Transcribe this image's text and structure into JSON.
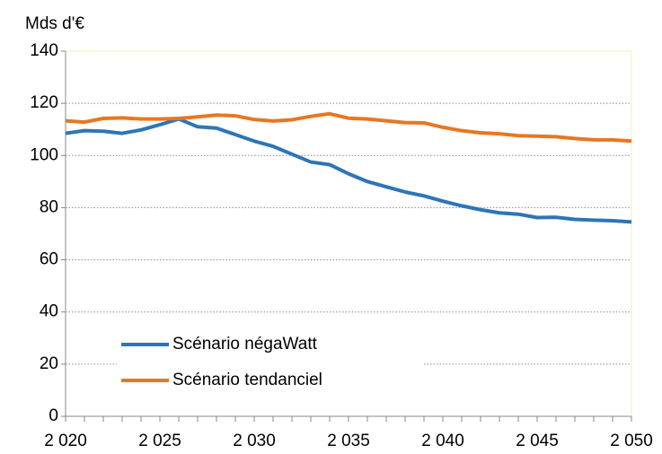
{
  "chart_data": {
    "type": "line",
    "y_label": "Mds d'€",
    "x": [
      2020,
      2021,
      2022,
      2023,
      2024,
      2025,
      2026,
      2027,
      2028,
      2029,
      2030,
      2031,
      2032,
      2033,
      2034,
      2035,
      2036,
      2037,
      2038,
      2039,
      2040,
      2041,
      2042,
      2043,
      2044,
      2045,
      2046,
      2047,
      2048,
      2049,
      2050
    ],
    "series": [
      {
        "name": "Scénario négaWatt",
        "color": "#2e75b6",
        "values": [
          108.5,
          109.5,
          109.3,
          108.5,
          109.8,
          111.8,
          114,
          111,
          110.5,
          108,
          105.5,
          103.5,
          100.5,
          97.5,
          96.5,
          93,
          90,
          88,
          86,
          84.5,
          82.5,
          80.7,
          79.2,
          78,
          77.5,
          76.2,
          76.3,
          75.5,
          75.2,
          75,
          74.5
        ]
      },
      {
        "name": "Scénario tendanciel",
        "color": "#e87722",
        "values": [
          113.3,
          112.8,
          114.2,
          114.4,
          114,
          114,
          114.2,
          114.8,
          115.5,
          115.2,
          113.8,
          113.2,
          113.7,
          115,
          116,
          114.3,
          114,
          113.3,
          112.6,
          112.5,
          110.8,
          109.5,
          108.7,
          108.3,
          107.6,
          107.4,
          107.2,
          106.5,
          106,
          106,
          105.5
        ]
      }
    ],
    "xlim": [
      2020,
      2050
    ],
    "xticks": [
      {
        "value": 2020,
        "label": "2 020"
      },
      {
        "value": 2025,
        "label": "2 025"
      },
      {
        "value": 2030,
        "label": "2 030"
      },
      {
        "value": 2035,
        "label": "2 035"
      },
      {
        "value": 2040,
        "label": "2 040"
      },
      {
        "value": 2045,
        "label": "2 045"
      },
      {
        "value": 2050,
        "label": "2 050"
      }
    ],
    "ylim": [
      0,
      140
    ],
    "yticks": [
      0,
      20,
      40,
      60,
      80,
      100,
      120,
      140
    ],
    "grid": true,
    "legend": "lower left"
  }
}
